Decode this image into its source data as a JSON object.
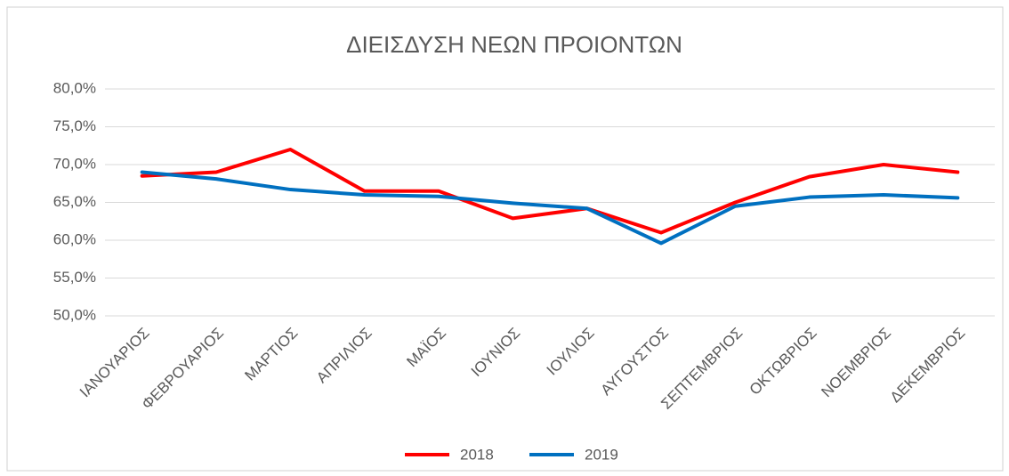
{
  "chart_data": {
    "type": "line",
    "title": "ΔΙΕΙΣΔΥΣΗ  ΝΕΩΝ ΠΡΟΙΟΝΤΩΝ",
    "categories": [
      "ΙΑΝΟΥΑΡΙΟΣ",
      "ΦΕΒΡΟΥΑΡΙΟΣ",
      "ΜΑΡΤΙΟΣ",
      "ΑΠΡΙΛΙΟΣ",
      "ΜΑΪΟΣ",
      "ΙΟΥΝΙΟΣ",
      "ΙΟΥΛΙΟΣ",
      "ΑΥΓΟΥΣΤΟΣ",
      "ΣΕΠΤΕΜΒΡΙΟΣ",
      "ΟΚΤΩΒΡΙΟΣ",
      "ΝΟΕΜΒΡΙΟΣ",
      "ΔΕΚΕΜΒΡΙΟΣ"
    ],
    "series": [
      {
        "name": "2018",
        "color": "#ff0000",
        "values": [
          68.5,
          69.0,
          72.0,
          66.5,
          66.5,
          62.9,
          64.2,
          61.0,
          65.0,
          68.4,
          70.0,
          69.0
        ]
      },
      {
        "name": "2019",
        "color": "#0070c0",
        "values": [
          69.0,
          68.1,
          66.7,
          66.0,
          65.8,
          64.9,
          64.2,
          59.6,
          64.5,
          65.7,
          66.0,
          65.6
        ]
      }
    ],
    "ylim": [
      50,
      80
    ],
    "yticks": [
      {
        "value": 50,
        "label": "50,0%"
      },
      {
        "value": 55,
        "label": "55,0%"
      },
      {
        "value": 60,
        "label": "60,0%"
      },
      {
        "value": 65,
        "label": "65,0%"
      },
      {
        "value": 70,
        "label": "70,0%"
      },
      {
        "value": 75,
        "label": "75,0%"
      },
      {
        "value": 80,
        "label": "80,0%"
      }
    ],
    "grid": true,
    "legend": "bottom"
  }
}
